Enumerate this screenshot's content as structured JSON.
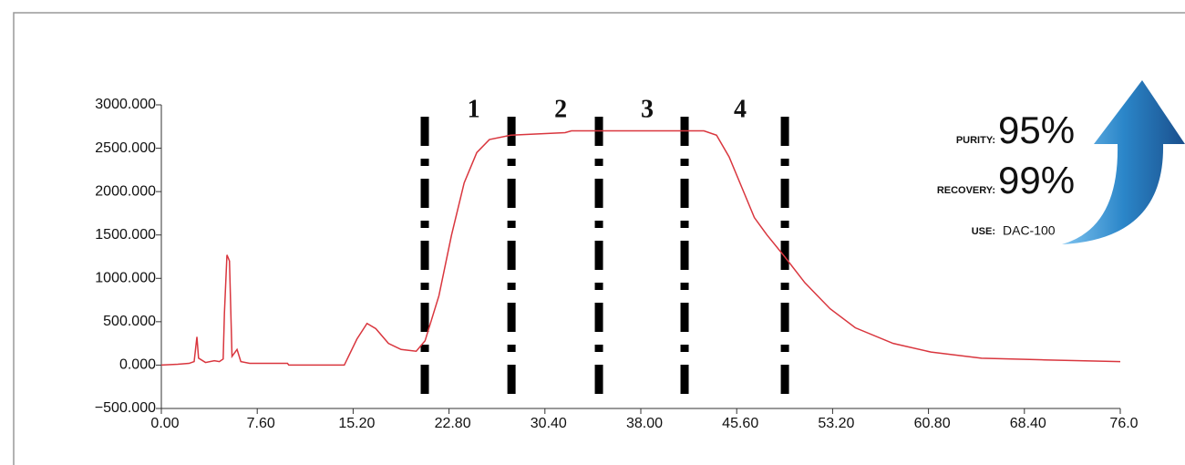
{
  "chart_data": {
    "type": "line",
    "x": [
      0,
      1.3,
      2.2,
      2.6,
      2.82,
      2.95,
      3.5,
      4.2,
      4.6,
      4.9,
      5.0,
      5.2,
      5.4,
      5.6,
      6.0,
      6.3,
      7.0,
      10.0,
      10.1,
      14.5,
      15.5,
      16.3,
      17.0,
      18.0,
      19.0,
      20.2,
      20.9,
      22.0,
      23.0,
      24.0,
      25.0,
      26.0,
      27.7,
      32.0,
      32.5,
      43.0,
      44.0,
      45.0,
      46.0,
      47.0,
      48.0,
      49.4,
      51.0,
      53.0,
      55.0,
      58.0,
      61.0,
      65.0,
      70.0,
      76.0
    ],
    "series": [
      {
        "color": "#d9363e",
        "values": [
          0,
          10,
          20,
          40,
          326,
          80,
          30,
          50,
          40,
          70,
          600,
          1270,
          1200,
          100,
          180,
          40,
          20,
          20,
          0,
          0,
          300,
          480,
          420,
          250,
          180,
          160,
          280,
          800,
          1500,
          2100,
          2450,
          2600,
          2650,
          2680,
          2700,
          2700,
          2650,
          2400,
          2050,
          1700,
          1500,
          1250,
          950,
          650,
          430,
          250,
          150,
          80,
          60,
          40
        ]
      }
    ],
    "xlim": [
      0,
      76
    ],
    "xticks": [
      {
        "value": 0,
        "label": "0.00"
      },
      {
        "value": 7.6,
        "label": "7.60"
      },
      {
        "value": 15.2,
        "label": "15.20"
      },
      {
        "value": 22.8,
        "label": "22.80"
      },
      {
        "value": 30.4,
        "label": "30.40"
      },
      {
        "value": 38,
        "label": "38.00"
      },
      {
        "value": 45.6,
        "label": "45.60"
      },
      {
        "value": 53.2,
        "label": "53.20"
      },
      {
        "value": 60.8,
        "label": "60.80"
      },
      {
        "value": 68.4,
        "label": "68.40"
      },
      {
        "value": 76,
        "label": "76.0"
      }
    ],
    "ylim": [
      -500,
      3000
    ],
    "yticks": [
      {
        "value": -500,
        "label": "−500.000"
      },
      {
        "value": 0,
        "label": "0.000"
      },
      {
        "value": 500,
        "label": "500.000"
      },
      {
        "value": 1000,
        "label": "1000.000"
      },
      {
        "value": 1500,
        "label": "1500.000"
      },
      {
        "value": 2000,
        "label": "2000.000"
      },
      {
        "value": 2500,
        "label": "2500.000"
      },
      {
        "value": 3000,
        "label": "3000.000"
      }
    ],
    "dividers": [
      20.88,
      27.75,
      34.68,
      41.47,
      49.42
    ],
    "regions": [
      "1",
      "2",
      "3",
      "4"
    ],
    "annotations": [
      {
        "key": "PURITY:",
        "text": "95%"
      },
      {
        "key": "RECOVERY:",
        "text": "99%"
      },
      {
        "key": "USE:",
        "text": "DAC-100"
      }
    ]
  }
}
